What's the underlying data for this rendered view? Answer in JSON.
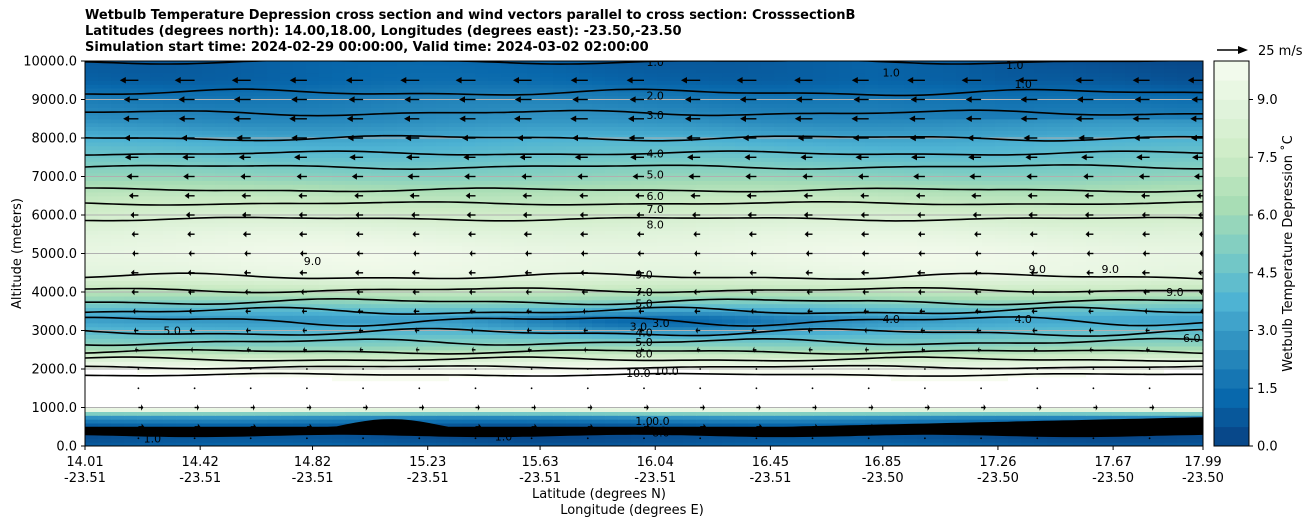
{
  "chart_data": {
    "type": "contour",
    "title_lines": [
      "Wetbulb Temperature Depression cross section and wind vectors parallel to cross section: CrosssectionB",
      "Latitudes (degrees north): 14.00,18.00, Longitudes (degrees east): -23.50,-23.50",
      "Simulation start time: 2024-02-29 00:00:00, Valid time: 2024-03-02 02:00:00"
    ],
    "xlabel_lat": "Latitude (degrees N)",
    "xlabel_lon": "Longitude (degrees E)",
    "ylabel": "Altitude (meters)",
    "ylim": [
      0,
      10000
    ],
    "yticks": [
      "0.0",
      "1000.0",
      "2000.0",
      "3000.0",
      "4000.0",
      "5000.0",
      "6000.0",
      "7000.0",
      "8000.0",
      "9000.0",
      "10000.0"
    ],
    "xticks_lat": [
      "14.01",
      "14.42",
      "14.82",
      "15.23",
      "15.63",
      "16.04",
      "16.45",
      "16.85",
      "17.26",
      "17.67",
      "17.99"
    ],
    "xticks_lon": [
      "-23.51",
      "-23.51",
      "-23.51",
      "-23.51",
      "-23.51",
      "-23.51",
      "-23.51",
      "-23.50",
      "-23.50",
      "-23.50",
      "-23.50"
    ],
    "grid": true,
    "colorbar": {
      "label": "Wetbulb Temperature Depression ˚C",
      "ticks": [
        "0.0",
        "1.5",
        "3.0",
        "4.5",
        "6.0",
        "7.5",
        "9.0"
      ],
      "range": [
        0,
        10
      ],
      "colormap": [
        "#084081",
        "#0868ac",
        "#2b8cbe",
        "#4eb3d3",
        "#7bccc4",
        "#a8ddb5",
        "#ccebc5",
        "#e0f3db",
        "#f7fcf0"
      ]
    },
    "profile": {
      "altitude": [
        0,
        200,
        500,
        800,
        1000,
        1500,
        2000,
        2300,
        2600,
        3000,
        3300,
        3600,
        4000,
        4500,
        5000,
        5500,
        6000,
        6500,
        7000,
        7500,
        8000,
        8500,
        9000,
        9500,
        10000
      ],
      "depression": [
        1.0,
        0.5,
        0.5,
        3.0,
        11.0,
        11.0,
        10.0,
        8.0,
        5.5,
        4.0,
        3.0,
        4.5,
        7.0,
        9.2,
        9.5,
        9.0,
        8.0,
        7.0,
        5.5,
        4.5,
        3.5,
        2.5,
        2.0,
        1.2,
        1.0
      ]
    },
    "contour_labels": [
      {
        "text": "1.0",
        "lat": 16.04,
        "alt": 9980
      },
      {
        "text": "2.0",
        "lat": 16.04,
        "alt": 9100
      },
      {
        "text": "3.0",
        "lat": 16.04,
        "alt": 8600
      },
      {
        "text": "4.0",
        "lat": 16.04,
        "alt": 7600
      },
      {
        "text": "5.0",
        "lat": 16.04,
        "alt": 7050
      },
      {
        "text": "6.0",
        "lat": 16.04,
        "alt": 6500
      },
      {
        "text": "7.0",
        "lat": 16.04,
        "alt": 6150
      },
      {
        "text": "8.0",
        "lat": 16.04,
        "alt": 5750
      },
      {
        "text": "9.0",
        "lat": 16.0,
        "alt": 4450
      },
      {
        "text": "7.0",
        "lat": 16.0,
        "alt": 4000
      },
      {
        "text": "5.0",
        "lat": 16.0,
        "alt": 3700
      },
      {
        "text": "3.0",
        "lat": 15.98,
        "alt": 3100
      },
      {
        "text": "3.0",
        "lat": 16.06,
        "alt": 3200
      },
      {
        "text": "4.0",
        "lat": 16.0,
        "alt": 2950
      },
      {
        "text": "5.0",
        "lat": 16.0,
        "alt": 2700
      },
      {
        "text": "8.0",
        "lat": 16.0,
        "alt": 2400
      },
      {
        "text": "10.0",
        "lat": 15.98,
        "alt": 1900
      },
      {
        "text": "10.0",
        "lat": 16.08,
        "alt": 1950
      },
      {
        "text": "9.0",
        "lat": 14.82,
        "alt": 4800
      },
      {
        "text": "5.0",
        "lat": 14.32,
        "alt": 3000
      },
      {
        "text": "4.0",
        "lat": 16.88,
        "alt": 3300
      },
      {
        "text": "4.0",
        "lat": 17.35,
        "alt": 3300
      },
      {
        "text": "9.0",
        "lat": 17.4,
        "alt": 4600
      },
      {
        "text": "9.0",
        "lat": 17.66,
        "alt": 4600
      },
      {
        "text": "9.0",
        "lat": 17.89,
        "alt": 4000
      },
      {
        "text": "6.0",
        "lat": 17.95,
        "alt": 2800
      },
      {
        "text": "1.0",
        "lat": 16.88,
        "alt": 9700
      },
      {
        "text": "1.0",
        "lat": 17.32,
        "alt": 9900
      },
      {
        "text": "1.0",
        "lat": 17.35,
        "alt": 9400
      },
      {
        "text": "1.0",
        "lat": 14.25,
        "alt": 200
      },
      {
        "text": "1.0",
        "lat": 15.5,
        "alt": 250
      },
      {
        "text": "1.0",
        "lat": 16.0,
        "alt": 650
      },
      {
        "text": "0.0",
        "lat": 16.06,
        "alt": 650
      },
      {
        "text": "1.0",
        "lat": 16.05,
        "alt": 400
      },
      {
        "text": "8.0",
        "lat": 16.06,
        "alt": 350
      }
    ],
    "wind": {
      "reference": "25 m/s",
      "reference_speed": 25,
      "altitude": [
        200,
        500,
        1000,
        1500,
        2000,
        2500,
        3000,
        3500,
        4000,
        4500,
        5000,
        5500,
        6000,
        6500,
        7000,
        7500,
        8000,
        8500,
        9000,
        9500
      ],
      "u": [
        0,
        6,
        5,
        1,
        -1,
        -4,
        -5,
        -6,
        -7,
        -8,
        -7,
        -8,
        -9,
        -10,
        -12,
        -14,
        -16,
        -18,
        -17,
        -20
      ]
    }
  }
}
